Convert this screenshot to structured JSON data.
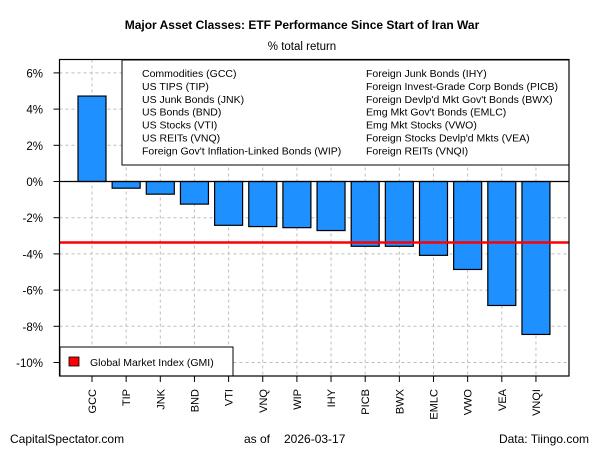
{
  "chart_data": {
    "type": "bar",
    "title": "Major Asset Classes: ETF Performance Since Start of Iran War",
    "subtitle": "% total return",
    "xlabel": "",
    "ylabel": "",
    "ylim": [
      -10.7,
      6.7
    ],
    "yticks": [
      6,
      4,
      2,
      0,
      -2,
      -4,
      -6,
      -8,
      -10
    ],
    "ytick_labels": [
      "6%",
      "4%",
      "2%",
      "0%",
      "-2%",
      "-4%",
      "-6%",
      "-8%",
      "-10%"
    ],
    "grid": true,
    "categories": [
      "GCC",
      "TIP",
      "JNK",
      "BND",
      "VTI",
      "VNQ",
      "WIP",
      "IHY",
      "PICB",
      "BWX",
      "EMLC",
      "VWO",
      "VEA",
      "VNQI"
    ],
    "values": [
      4.72,
      -0.37,
      -0.7,
      -1.25,
      -2.42,
      -2.49,
      -2.55,
      -2.71,
      -3.58,
      -3.58,
      -4.08,
      -4.86,
      -6.85,
      -8.45
    ],
    "bar_color": "#1E90FF",
    "reference_line": {
      "name": "Global Market Index (GMI)",
      "value": -3.37,
      "color": "#FF0000"
    },
    "legend_placement": "top-right",
    "legend_columns": [
      [
        "Commodities (GCC)",
        "US TIPS (TIP)",
        "US Junk Bonds (JNK)",
        "US Bonds (BND)",
        "US Stocks (VTI)",
        "US REITs (VNQ)",
        "Foreign Gov't Inflation-Linked Bonds (WIP)"
      ],
      [
        "Foreign Junk Bonds (IHY)",
        "Foreign Invest-Grade Corp Bonds (PICB)",
        "Foreign Devlp'd Mkt Gov't Bonds (BWX)",
        "Emg Mkt Gov't Bonds (EMLC)",
        "Emg Mkt Stocks (VWO)",
        "Foreign Stocks Devlp'd Mkts (VEA)",
        "Foreign REITs (VNQI)"
      ]
    ],
    "gmi_legend_placement": "bottom-left",
    "gmi_legend_label": "Global Market Index (GMI)"
  },
  "footer": {
    "left": "CapitalSpectator.com",
    "center_prefix": "as of",
    "center_date": "2026-03-17",
    "right": "Data: Tiingo.com"
  }
}
